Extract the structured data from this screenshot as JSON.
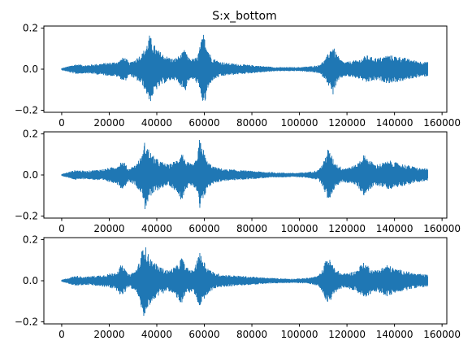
{
  "figure": {
    "title": "S:x_bottom",
    "background": "#ffffff"
  },
  "chart_data": [
    {
      "type": "line",
      "series_color": "#1f77b4",
      "xlim": [
        -7500,
        162000
      ],
      "ylim": [
        -0.21,
        0.21
      ],
      "xticks": [
        0,
        20000,
        40000,
        60000,
        80000,
        100000,
        120000,
        140000,
        160000
      ],
      "xtick_labels": [
        "0",
        "20000",
        "40000",
        "60000",
        "80000",
        "100000",
        "120000",
        "140000",
        "160000"
      ],
      "yticks": [
        -0.2,
        0.0,
        0.2
      ],
      "ytick_labels": [
        "−0.2",
        "0.0",
        "0.2"
      ],
      "x_extent": [
        0,
        154000
      ],
      "envelope": {
        "x": [
          0,
          3000,
          6000,
          10000,
          14000,
          18000,
          22000,
          24000,
          26000,
          27000,
          28500,
          31000,
          34000,
          36000,
          37000,
          38000,
          40000,
          43000,
          47000,
          50000,
          52000,
          53000,
          55000,
          57000,
          59000,
          60000,
          61000,
          63000,
          66000,
          70000,
          75000,
          80000,
          85000,
          90000,
          95000,
          100000,
          105000,
          108000,
          111000,
          113000,
          114000,
          115000,
          117000,
          119000,
          122000,
          126000,
          128000,
          130000,
          133000,
          135000,
          137000,
          140000,
          143000,
          146000,
          150000,
          154000
        ],
        "upper": [
          0.005,
          0.015,
          0.025,
          0.02,
          0.025,
          0.03,
          0.035,
          0.04,
          0.06,
          0.055,
          0.03,
          0.05,
          0.08,
          0.13,
          0.17,
          0.14,
          0.1,
          0.07,
          0.05,
          0.07,
          0.1,
          0.06,
          0.05,
          0.06,
          0.15,
          0.19,
          0.12,
          0.06,
          0.04,
          0.03,
          0.025,
          0.02,
          0.015,
          0.01,
          0.01,
          0.01,
          0.015,
          0.02,
          0.05,
          0.1,
          0.12,
          0.09,
          0.05,
          0.035,
          0.04,
          0.05,
          0.07,
          0.06,
          0.055,
          0.06,
          0.07,
          0.065,
          0.06,
          0.05,
          0.04,
          0.035
        ],
        "lower": [
          -0.005,
          -0.015,
          -0.025,
          -0.02,
          -0.025,
          -0.03,
          -0.035,
          -0.04,
          -0.06,
          -0.055,
          -0.03,
          -0.05,
          -0.08,
          -0.13,
          -0.17,
          -0.14,
          -0.1,
          -0.07,
          -0.05,
          -0.08,
          -0.11,
          -0.06,
          -0.05,
          -0.07,
          -0.15,
          -0.19,
          -0.12,
          -0.06,
          -0.04,
          -0.03,
          -0.025,
          -0.02,
          -0.015,
          -0.01,
          -0.01,
          -0.01,
          -0.015,
          -0.02,
          -0.05,
          -0.1,
          -0.13,
          -0.09,
          -0.05,
          -0.035,
          -0.04,
          -0.05,
          -0.07,
          -0.06,
          -0.055,
          -0.06,
          -0.07,
          -0.065,
          -0.06,
          -0.05,
          -0.04,
          -0.035
        ]
      }
    },
    {
      "type": "line",
      "series_color": "#1f77b4",
      "xlim": [
        -7500,
        162000
      ],
      "ylim": [
        -0.21,
        0.21
      ],
      "xticks": [
        0,
        20000,
        40000,
        60000,
        80000,
        100000,
        120000,
        140000,
        160000
      ],
      "xtick_labels": [
        "0",
        "20000",
        "40000",
        "60000",
        "80000",
        "100000",
        "120000",
        "140000",
        "160000"
      ],
      "yticks": [
        -0.2,
        0.0,
        0.2
      ],
      "ytick_labels": [
        "−0.2",
        "0.0",
        "0.2"
      ],
      "x_extent": [
        0,
        154000
      ],
      "envelope": {
        "x": [
          0,
          3000,
          6000,
          10000,
          14000,
          18000,
          22000,
          24000,
          25000,
          26500,
          28000,
          31000,
          34000,
          35000,
          36000,
          38000,
          41000,
          45000,
          49000,
          50500,
          52000,
          55000,
          57000,
          58000,
          59000,
          61000,
          64000,
          68000,
          74000,
          80000,
          86000,
          92000,
          98000,
          104000,
          108000,
          110000,
          112000,
          113000,
          115000,
          118000,
          121000,
          124000,
          127000,
          129000,
          132000,
          135000,
          138000,
          141000,
          145000,
          150000,
          154000
        ],
        "upper": [
          0.005,
          0.015,
          0.025,
          0.02,
          0.025,
          0.03,
          0.04,
          0.05,
          0.07,
          0.06,
          0.03,
          0.05,
          0.1,
          0.17,
          0.14,
          0.1,
          0.07,
          0.05,
          0.08,
          0.12,
          0.07,
          0.05,
          0.08,
          0.18,
          0.15,
          0.07,
          0.04,
          0.03,
          0.025,
          0.02,
          0.015,
          0.012,
          0.01,
          0.015,
          0.025,
          0.06,
          0.13,
          0.11,
          0.06,
          0.035,
          0.04,
          0.05,
          0.1,
          0.08,
          0.05,
          0.06,
          0.07,
          0.06,
          0.05,
          0.035,
          0.03
        ],
        "lower": [
          -0.005,
          -0.015,
          -0.025,
          -0.02,
          -0.025,
          -0.03,
          -0.04,
          -0.05,
          -0.07,
          -0.06,
          -0.03,
          -0.05,
          -0.1,
          -0.17,
          -0.14,
          -0.1,
          -0.07,
          -0.05,
          -0.09,
          -0.13,
          -0.07,
          -0.05,
          -0.09,
          -0.18,
          -0.15,
          -0.07,
          -0.04,
          -0.03,
          -0.025,
          -0.02,
          -0.015,
          -0.012,
          -0.01,
          -0.015,
          -0.025,
          -0.06,
          -0.13,
          -0.11,
          -0.06,
          -0.035,
          -0.04,
          -0.05,
          -0.1,
          -0.08,
          -0.05,
          -0.06,
          -0.07,
          -0.06,
          -0.05,
          -0.035,
          -0.03
        ]
      }
    },
    {
      "type": "line",
      "series_color": "#1f77b4",
      "xlim": [
        -7500,
        162000
      ],
      "ylim": [
        -0.21,
        0.21
      ],
      "xticks": [
        0,
        20000,
        40000,
        60000,
        80000,
        100000,
        120000,
        140000,
        160000
      ],
      "xtick_labels": [
        "0",
        "20000",
        "40000",
        "60000",
        "80000",
        "100000",
        "120000",
        "140000",
        "160000"
      ],
      "yticks": [
        -0.2,
        0.0,
        0.2
      ],
      "ytick_labels": [
        "−0.2",
        "0.0",
        "0.2"
      ],
      "x_extent": [
        0,
        154000
      ],
      "envelope": {
        "x": [
          0,
          3000,
          6000,
          10000,
          14000,
          18000,
          22000,
          24000,
          25000,
          26500,
          28000,
          31000,
          33000,
          34500,
          36000,
          38000,
          41000,
          45000,
          49000,
          50500,
          52000,
          55000,
          56500,
          57500,
          59000,
          61000,
          64000,
          68000,
          74000,
          80000,
          86000,
          92000,
          98000,
          104000,
          108000,
          110000,
          111500,
          113000,
          115000,
          118000,
          121000,
          124000,
          126500,
          128500,
          131000,
          134000,
          137000,
          140000,
          144000,
          149000,
          154000
        ],
        "upper": [
          0.005,
          0.015,
          0.025,
          0.02,
          0.025,
          0.03,
          0.04,
          0.055,
          0.08,
          0.06,
          0.03,
          0.05,
          0.1,
          0.2,
          0.14,
          0.1,
          0.07,
          0.05,
          0.08,
          0.12,
          0.07,
          0.05,
          0.08,
          0.15,
          0.12,
          0.07,
          0.04,
          0.03,
          0.025,
          0.02,
          0.015,
          0.012,
          0.01,
          0.015,
          0.025,
          0.06,
          0.12,
          0.1,
          0.06,
          0.035,
          0.04,
          0.05,
          0.09,
          0.08,
          0.05,
          0.06,
          0.08,
          0.06,
          0.05,
          0.035,
          0.03
        ],
        "lower": [
          -0.005,
          -0.015,
          -0.025,
          -0.02,
          -0.025,
          -0.03,
          -0.04,
          -0.055,
          -0.08,
          -0.06,
          -0.03,
          -0.05,
          -0.1,
          -0.2,
          -0.14,
          -0.1,
          -0.07,
          -0.05,
          -0.09,
          -0.13,
          -0.07,
          -0.05,
          -0.08,
          -0.15,
          -0.12,
          -0.07,
          -0.04,
          -0.03,
          -0.025,
          -0.02,
          -0.015,
          -0.012,
          -0.01,
          -0.015,
          -0.025,
          -0.06,
          -0.12,
          -0.1,
          -0.06,
          -0.035,
          -0.04,
          -0.05,
          -0.09,
          -0.08,
          -0.05,
          -0.06,
          -0.08,
          -0.06,
          -0.05,
          -0.035,
          -0.03
        ]
      }
    }
  ]
}
